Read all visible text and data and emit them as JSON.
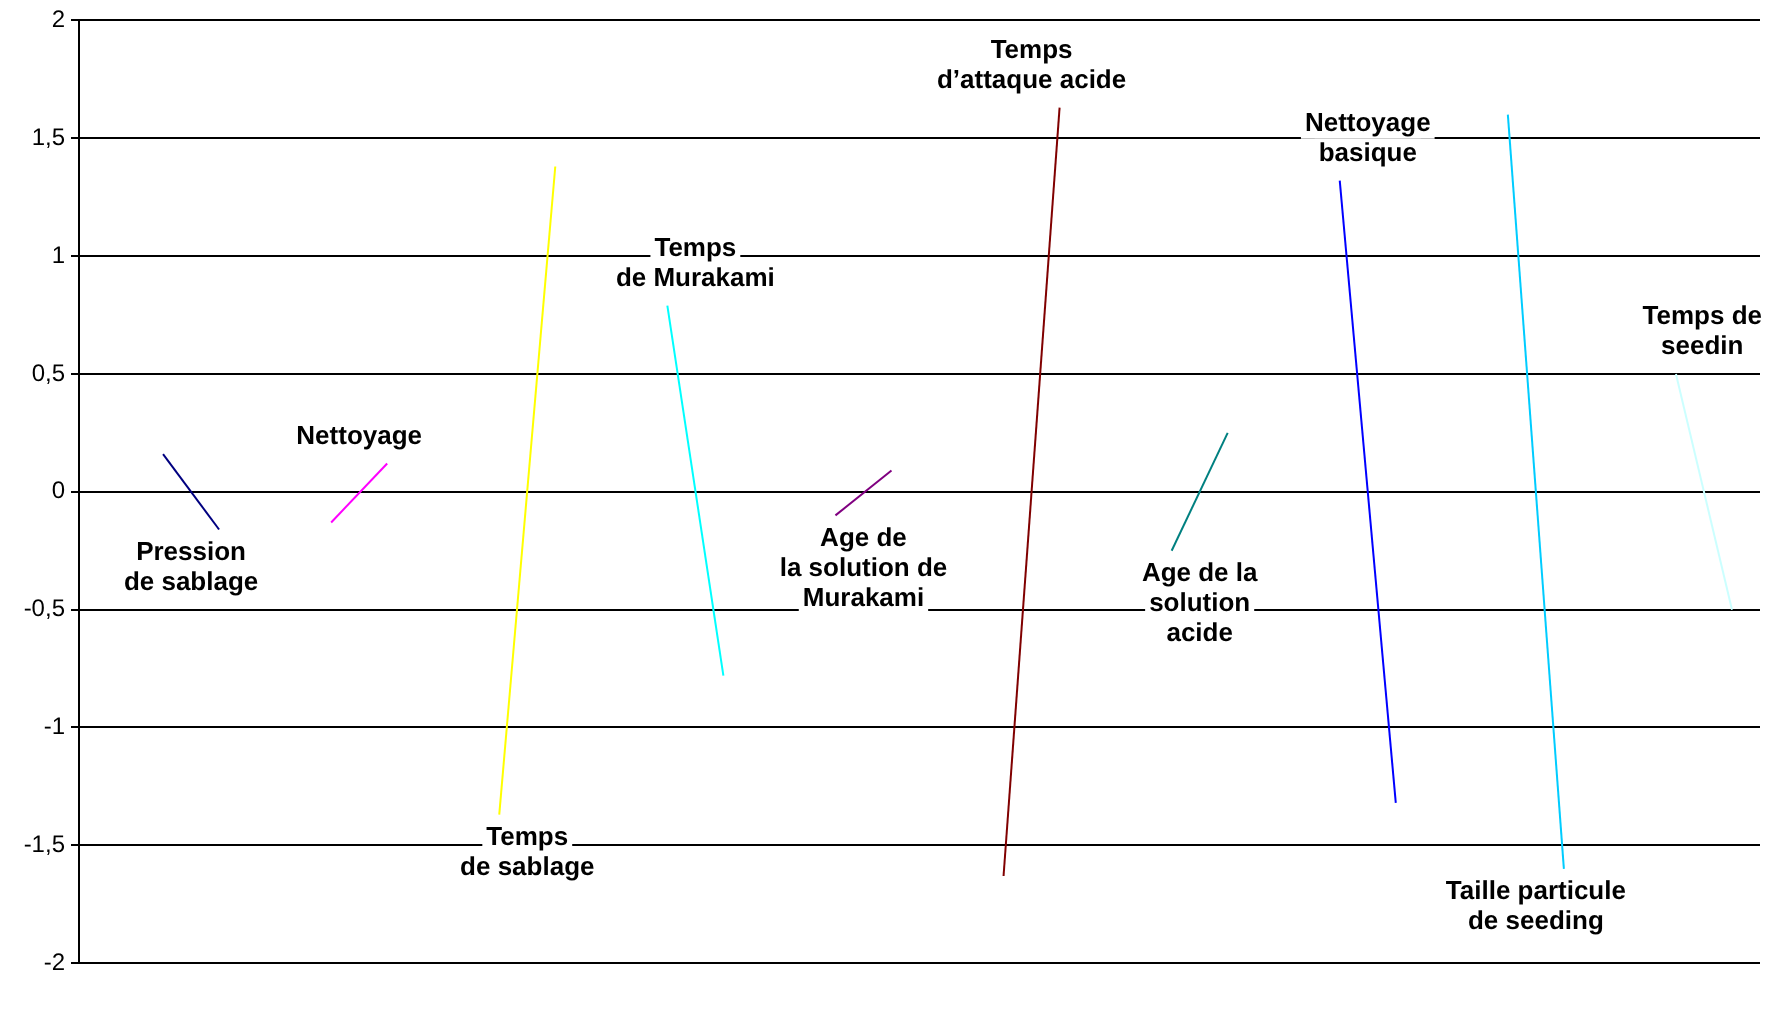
{
  "chart_data": {
    "type": "line",
    "categories": [
      null,
      null,
      null,
      null,
      null,
      null,
      null,
      null,
      null,
      null,
      null,
      null,
      null,
      null,
      null,
      null,
      null,
      null,
      null,
      null,
      null,
      null,
      null,
      null,
      null,
      null,
      null,
      null,
      null,
      null
    ],
    "series": [
      {
        "name": "Pression\nde sablage",
        "color": "#000080",
        "values": [
          null,
          0.16,
          -0.16,
          null,
          null,
          null,
          null,
          null,
          null,
          null,
          null,
          null,
          null,
          null,
          null,
          null,
          null,
          null,
          null,
          null,
          null,
          null,
          null,
          null,
          null,
          null,
          null,
          null,
          null,
          null
        ]
      },
      {
        "name": "Nettoyage",
        "color": "#ff00ff",
        "values": [
          null,
          null,
          null,
          null,
          -0.13,
          0.12,
          null,
          null,
          null,
          null,
          null,
          null,
          null,
          null,
          null,
          null,
          null,
          null,
          null,
          null,
          null,
          null,
          null,
          null,
          null,
          null,
          null,
          null,
          null,
          null
        ]
      },
      {
        "name": "Temps\nde sablage",
        "color": "#ffff00",
        "values": [
          null,
          null,
          null,
          null,
          null,
          null,
          null,
          -1.37,
          1.38,
          null,
          null,
          null,
          null,
          null,
          null,
          null,
          null,
          null,
          null,
          null,
          null,
          null,
          null,
          null,
          null,
          null,
          null,
          null,
          null,
          null
        ]
      },
      {
        "name": "Temps\nde Murakami",
        "color": "#00ffff",
        "values": [
          null,
          null,
          null,
          null,
          null,
          null,
          null,
          null,
          null,
          null,
          0.79,
          -0.78,
          null,
          null,
          null,
          null,
          null,
          null,
          null,
          null,
          null,
          null,
          null,
          null,
          null,
          null,
          null,
          null,
          null,
          null
        ]
      },
      {
        "name": "Age de\nla solution de\nMurakami",
        "color": "#800080",
        "values": [
          null,
          null,
          null,
          null,
          null,
          null,
          null,
          null,
          null,
          null,
          null,
          null,
          null,
          -0.1,
          0.09,
          null,
          null,
          null,
          null,
          null,
          null,
          null,
          null,
          null,
          null,
          null,
          null,
          null,
          null,
          null
        ]
      },
      {
        "name": "Temps\nd’attaque acide",
        "color": "#800000",
        "values": [
          null,
          null,
          null,
          null,
          null,
          null,
          null,
          null,
          null,
          null,
          null,
          null,
          null,
          null,
          null,
          null,
          -1.63,
          1.63,
          null,
          null,
          null,
          null,
          null,
          null,
          null,
          null,
          null,
          null,
          null,
          null
        ]
      },
      {
        "name": "Age de la\nsolution\nacide",
        "color": "#008080",
        "values": [
          null,
          null,
          null,
          null,
          null,
          null,
          null,
          null,
          null,
          null,
          null,
          null,
          null,
          null,
          null,
          null,
          null,
          null,
          null,
          -0.25,
          0.25,
          null,
          null,
          null,
          null,
          null,
          null,
          null,
          null,
          null
        ]
      },
      {
        "name": "Nettoyage\nbasique",
        "color": "#0000ff",
        "values": [
          null,
          null,
          null,
          null,
          null,
          null,
          null,
          null,
          null,
          null,
          null,
          null,
          null,
          null,
          null,
          null,
          null,
          null,
          null,
          null,
          null,
          null,
          1.32,
          -1.32,
          null,
          null,
          null,
          null,
          null,
          null
        ]
      },
      {
        "name": "Taille particule\nde seeding",
        "color": "#00ccff",
        "values": [
          null,
          null,
          null,
          null,
          null,
          null,
          null,
          null,
          null,
          null,
          null,
          null,
          null,
          null,
          null,
          null,
          null,
          null,
          null,
          null,
          null,
          null,
          null,
          null,
          null,
          1.6,
          -1.6,
          null,
          null,
          null
        ]
      },
      {
        "name": "Temps de\nseedin",
        "color": "#ccffff",
        "values": [
          null,
          null,
          null,
          null,
          null,
          null,
          null,
          null,
          null,
          null,
          null,
          null,
          null,
          null,
          null,
          null,
          null,
          null,
          null,
          null,
          null,
          null,
          null,
          null,
          null,
          null,
          null,
          null,
          0.5,
          -0.5
        ]
      }
    ],
    "ylim": [
      -2,
      2
    ],
    "yticks": [
      {
        "value": -2,
        "label": "-2"
      },
      {
        "value": -1.5,
        "label": "-1,5"
      },
      {
        "value": -1,
        "label": "-1"
      },
      {
        "value": -0.5,
        "label": "-0,5"
      },
      {
        "value": 0,
        "label": "0"
      },
      {
        "value": 0.5,
        "label": "0,5"
      },
      {
        "value": 1,
        "label": "1"
      },
      {
        "value": 1.5,
        "label": "1,5"
      },
      {
        "value": 2,
        "label": "2"
      }
    ],
    "grid": "y",
    "marker": "none",
    "line_style": "solid",
    "legend": false
  }
}
